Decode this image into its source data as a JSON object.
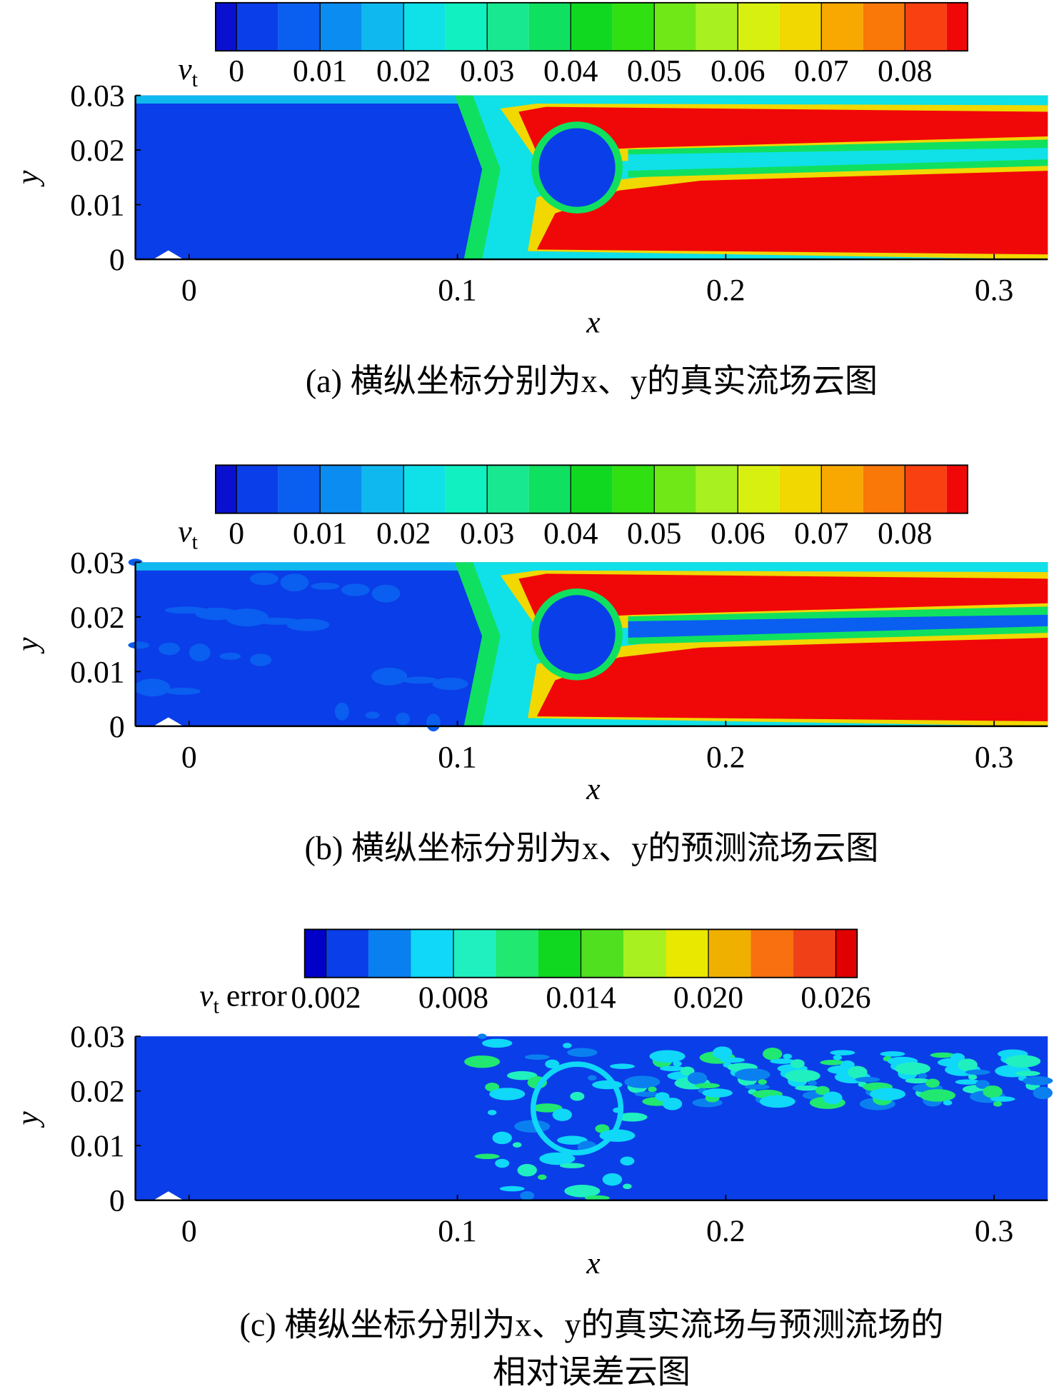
{
  "chart_data": [
    {
      "type": "contour",
      "caption": [
        "(a) 横纵坐标分别为x、y的真实流场云图"
      ],
      "xlabel": "x",
      "ylabel": "y",
      "xlim": [
        -0.02,
        0.32
      ],
      "ylim": [
        0,
        0.03
      ],
      "xticks": [
        0,
        0.1,
        0.2,
        0.3
      ],
      "yticks": [
        0,
        0.01,
        0.02,
        0.03
      ],
      "colorbar_label": "v",
      "colorbar_label_sub": "t",
      "colorbar_levels": [
        -0.0025,
        0,
        0.005,
        0.01,
        0.015,
        0.02,
        0.025,
        0.03,
        0.035,
        0.04,
        0.045,
        0.05,
        0.055,
        0.06,
        0.065,
        0.07,
        0.075,
        0.08,
        0.085,
        0.0875
      ],
      "colorbar_colors": [
        "#0a10d0",
        "#0a3ee8",
        "#0a5ef0",
        "#0a8cf0",
        "#10b8f0",
        "#10e0e8",
        "#10f0c0",
        "#18e890",
        "#10e060",
        "#10d820",
        "#30e010",
        "#70e818",
        "#a8f020",
        "#d8f010",
        "#f0d800",
        "#f8a800",
        "#f87808",
        "#f84010",
        "#f00808"
      ],
      "colorbar_ticks": [
        0,
        0.01,
        0.02,
        0.03,
        0.04,
        0.05,
        0.06,
        0.07,
        0.08
      ]
    },
    {
      "type": "contour",
      "caption": [
        "(b) 横纵坐标分别为x、y的预测流场云图"
      ],
      "xlabel": "x",
      "ylabel": "y",
      "xlim": [
        -0.02,
        0.32
      ],
      "ylim": [
        0,
        0.03
      ],
      "xticks": [
        0,
        0.1,
        0.2,
        0.3
      ],
      "yticks": [
        0,
        0.01,
        0.02,
        0.03
      ],
      "colorbar_label": "v",
      "colorbar_label_sub": "t",
      "colorbar_levels": [
        -0.0025,
        0,
        0.005,
        0.01,
        0.015,
        0.02,
        0.025,
        0.03,
        0.035,
        0.04,
        0.045,
        0.05,
        0.055,
        0.06,
        0.065,
        0.07,
        0.075,
        0.08,
        0.085,
        0.0875
      ],
      "colorbar_colors": [
        "#0a10d0",
        "#0a3ee8",
        "#0a5ef0",
        "#0a8cf0",
        "#10b8f0",
        "#10e0e8",
        "#10f0c0",
        "#18e890",
        "#10e060",
        "#10d820",
        "#30e010",
        "#70e818",
        "#a8f020",
        "#d8f010",
        "#f0d800",
        "#f8a800",
        "#f87808",
        "#f84010",
        "#f00808"
      ],
      "colorbar_ticks": [
        0,
        0.01,
        0.02,
        0.03,
        0.04,
        0.05,
        0.06,
        0.07,
        0.08
      ]
    },
    {
      "type": "contour",
      "caption": [
        "(c) 横纵坐标分别为x、y的真实流场与预测流场的",
        "相对误差云图"
      ],
      "xlabel": "x",
      "ylabel": "y",
      "xlim": [
        -0.02,
        0.32
      ],
      "ylim": [
        0,
        0.03
      ],
      "xticks": [
        0,
        0.1,
        0.2,
        0.3
      ],
      "yticks": [
        0,
        0.01,
        0.02,
        0.03
      ],
      "colorbar_label": "v",
      "colorbar_label_sub": "t",
      "colorbar_label_suffix": "error",
      "colorbar_levels": [
        0.001,
        0.002,
        0.004,
        0.006,
        0.008,
        0.01,
        0.012,
        0.014,
        0.016,
        0.018,
        0.02,
        0.022,
        0.024,
        0.026,
        0.027
      ],
      "colorbar_colors": [
        "#0000c8",
        "#0a3ee8",
        "#0a80f0",
        "#10d8f8",
        "#20f0c0",
        "#20e870",
        "#10d820",
        "#50e020",
        "#a8f020",
        "#e8e800",
        "#f0b000",
        "#f87010",
        "#f04018",
        "#e00000"
      ],
      "colorbar_ticks": [
        0.002,
        0.008,
        0.014,
        {
          "value": 0.02,
          "label": "0.020"
        },
        0.026
      ]
    }
  ]
}
